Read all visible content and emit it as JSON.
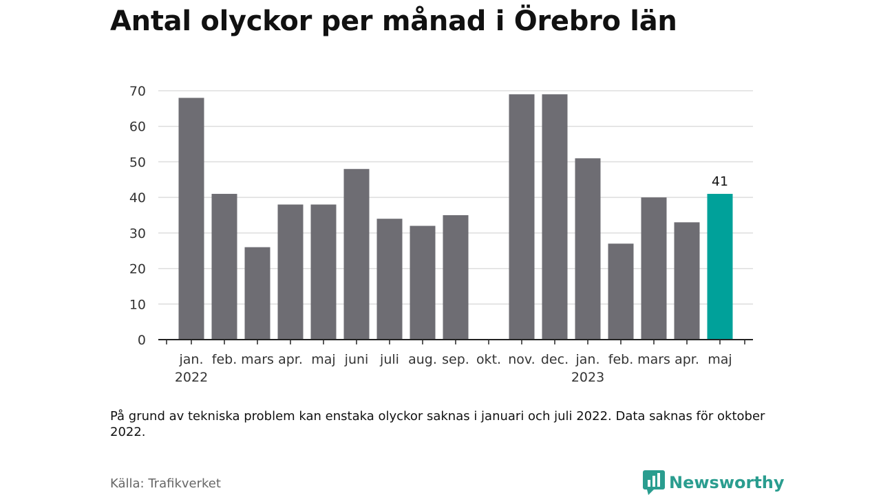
{
  "title": "Antal olyckor per månad i Örebro län",
  "note": "På grund av tekniska problem kan enstaka olyckor saknas i januari och juli 2022. Data saknas för oktober 2022.",
  "source": "Källa: Trafikverket",
  "brand": {
    "name": "Newsworthy",
    "icon": "newsworthy-logo-icon"
  },
  "colors": {
    "bar": "#6e6d73",
    "highlight": "#00a19a",
    "grid": "#dddddd",
    "axis": "#222222",
    "brand": "#2a9d8f"
  },
  "chart_data": {
    "type": "bar",
    "categories": [
      "jan.",
      "feb.",
      "mars",
      "apr.",
      "maj",
      "juni",
      "juli",
      "aug.",
      "sep.",
      "okt.",
      "nov.",
      "dec.",
      "jan.",
      "feb.",
      "mars",
      "apr.",
      "maj"
    ],
    "year_labels": [
      {
        "index": 0,
        "label": "2022"
      },
      {
        "index": 12,
        "label": "2023"
      }
    ],
    "values": [
      68,
      41,
      26,
      38,
      38,
      48,
      34,
      32,
      35,
      null,
      69,
      69,
      51,
      27,
      40,
      33,
      41
    ],
    "highlight_index": 16,
    "data_labels": [
      {
        "index": 16,
        "label": "41"
      }
    ],
    "yticks": [
      0,
      10,
      20,
      30,
      40,
      50,
      60,
      70
    ],
    "ylim": [
      0,
      70
    ],
    "grid": true
  }
}
